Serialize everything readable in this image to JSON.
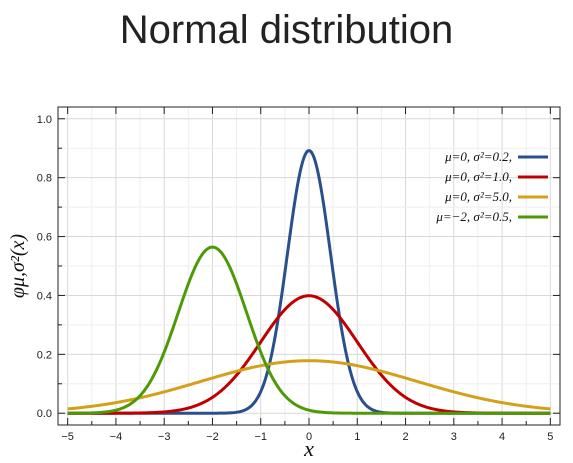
{
  "title": "Normal distribution",
  "chart_data": {
    "type": "line",
    "xlabel": "x",
    "ylabel": "φμ,σ²(x)",
    "xlim": [
      -5.2,
      5.2
    ],
    "ylim": [
      -0.04,
      1.04
    ],
    "x_ticks": [
      -5,
      -4,
      -3,
      -2,
      -1,
      0,
      1,
      2,
      3,
      4,
      5
    ],
    "x_tick_labels": [
      "−5",
      "−4",
      "−3",
      "−2",
      "−1",
      "0",
      "1",
      "2",
      "3",
      "4",
      "5"
    ],
    "y_ticks": [
      0,
      0.2,
      0.4,
      0.6,
      0.8,
      1.0
    ],
    "y_tick_labels": [
      "0.0",
      "0.2",
      "0.4",
      "0.6",
      "0.8",
      "1.0"
    ],
    "grid": true,
    "legend_position": "top-right",
    "series": [
      {
        "name": "μ=0,   σ²=0.2,",
        "mu": 0,
        "var": 0.2,
        "color": "#2a4f8f"
      },
      {
        "name": "μ=0,   σ²=1.0,",
        "mu": 0,
        "var": 1.0,
        "color": "#c00000"
      },
      {
        "name": "μ=0,   σ²=5.0,",
        "mu": 0,
        "var": 5.0,
        "color": "#d4a017"
      },
      {
        "name": "μ=−2,  σ²=0.5,",
        "mu": -2,
        "var": 0.5,
        "color": "#4e9a06"
      }
    ]
  }
}
